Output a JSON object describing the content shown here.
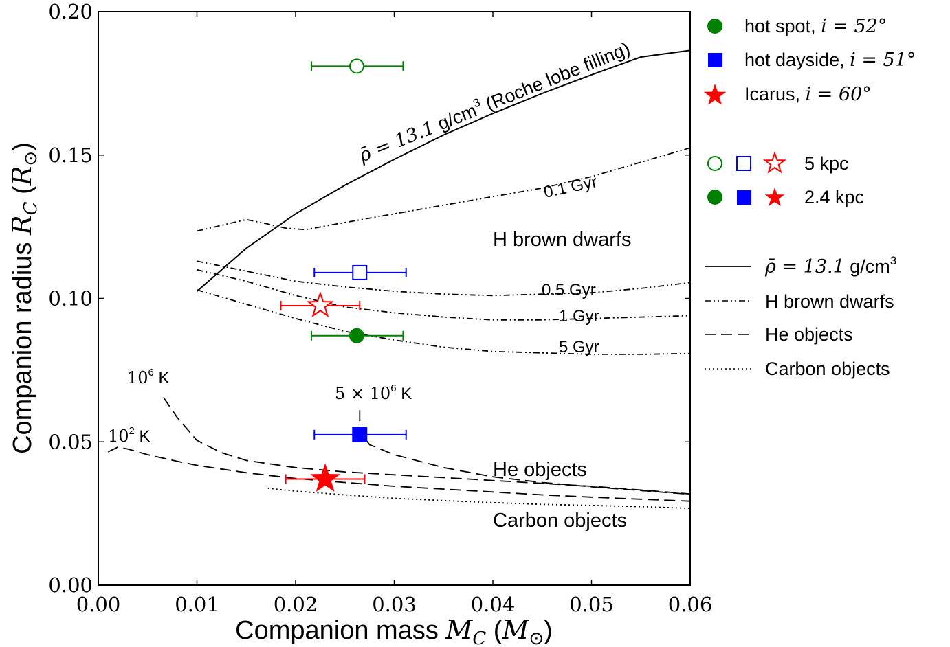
{
  "chart_data": {
    "type": "scatter",
    "title": "",
    "xlabel": {
      "text": "Companion mass ",
      "math": "M",
      "sub": "C",
      "unit_open": " (",
      "unit_math": "M",
      "unit_sub": "⊙",
      "unit_close": ")"
    },
    "ylabel": {
      "text": "Companion radius ",
      "math": "R",
      "sub": "C",
      "unit_open": " (",
      "unit_math": "R",
      "unit_sub": "⊙",
      "unit_close": ")"
    },
    "xlim": [
      0.0,
      0.06
    ],
    "ylim": [
      0.0,
      0.2
    ],
    "xticks": [
      0.0,
      0.01,
      0.02,
      0.03,
      0.04,
      0.05,
      0.06
    ],
    "xtick_labels": [
      "0.00",
      "0.01",
      "0.02",
      "0.03",
      "0.04",
      "0.05",
      "0.06"
    ],
    "yticks": [
      0.0,
      0.05,
      0.1,
      0.15,
      0.2
    ],
    "ytick_labels": [
      "0.00",
      "0.05",
      "0.10",
      "0.15",
      "0.20"
    ],
    "grid": false,
    "legend_placement": "right-outside",
    "colors": {
      "green": "#008000",
      "blue": "#0000ff",
      "red": "#ff0000",
      "black": "#000000"
    },
    "points": [
      {
        "model": "hot spot",
        "distance": "5 kpc",
        "marker": "circle",
        "filled": false,
        "color": "#008000",
        "x": 0.0262,
        "y": 0.181,
        "xerr": [
          0.0216,
          0.0309
        ]
      },
      {
        "model": "hot spot",
        "distance": "2.4 kpc",
        "marker": "circle",
        "filled": true,
        "color": "#008000",
        "x": 0.0262,
        "y": 0.087,
        "xerr": [
          0.0216,
          0.0309
        ]
      },
      {
        "model": "hot dayside",
        "distance": "5 kpc",
        "marker": "square",
        "filled": false,
        "color": "#0000ff",
        "x": 0.0265,
        "y": 0.109,
        "xerr": [
          0.0219,
          0.0312
        ]
      },
      {
        "model": "hot dayside",
        "distance": "2.4 kpc",
        "marker": "square",
        "filled": true,
        "color": "#0000ff",
        "x": 0.0265,
        "y": 0.0525,
        "xerr": [
          0.0219,
          0.0312
        ]
      },
      {
        "model": "Icarus",
        "distance": "5 kpc",
        "marker": "star",
        "filled": false,
        "color": "#ff0000",
        "x": 0.0225,
        "y": 0.0975,
        "xerr": [
          0.0185,
          0.0265
        ]
      },
      {
        "model": "Icarus",
        "distance": "2.4 kpc",
        "marker": "star",
        "filled": true,
        "color": "#ff0000",
        "x": 0.023,
        "y": 0.037,
        "xerr": [
          0.019,
          0.027
        ]
      }
    ],
    "curves": [
      {
        "id": "roche",
        "style": "solid",
        "points": [
          [
            0.01,
            0.1025
          ],
          [
            0.015,
            0.1175
          ],
          [
            0.02,
            0.1295
          ],
          [
            0.025,
            0.1395
          ],
          [
            0.03,
            0.1485
          ],
          [
            0.035,
            0.157
          ],
          [
            0.04,
            0.1645
          ],
          [
            0.045,
            0.1715
          ],
          [
            0.05,
            0.178
          ],
          [
            0.055,
            0.1842
          ],
          [
            0.06,
            0.1865
          ]
        ]
      },
      {
        "id": "bd-0.1",
        "style": "dashdot",
        "points": [
          [
            0.01,
            0.1235
          ],
          [
            0.0125,
            0.1255
          ],
          [
            0.015,
            0.1275
          ],
          [
            0.0165,
            0.1265
          ],
          [
            0.019,
            0.1245
          ],
          [
            0.021,
            0.124
          ],
          [
            0.025,
            0.1265
          ],
          [
            0.03,
            0.1295
          ],
          [
            0.035,
            0.1325
          ],
          [
            0.04,
            0.1355
          ],
          [
            0.045,
            0.1385
          ],
          [
            0.05,
            0.1425
          ],
          [
            0.055,
            0.1475
          ],
          [
            0.06,
            0.1525
          ]
        ]
      },
      {
        "id": "bd-0.5",
        "style": "dashdot",
        "points": [
          [
            0.01,
            0.113
          ],
          [
            0.015,
            0.1095
          ],
          [
            0.02,
            0.106
          ],
          [
            0.025,
            0.104
          ],
          [
            0.03,
            0.1025
          ],
          [
            0.035,
            0.1015
          ],
          [
            0.04,
            0.101
          ],
          [
            0.045,
            0.1015
          ],
          [
            0.05,
            0.102
          ],
          [
            0.055,
            0.1035
          ],
          [
            0.06,
            0.1055
          ]
        ]
      },
      {
        "id": "bd-1",
        "style": "dashdot",
        "points": [
          [
            0.01,
            0.11
          ],
          [
            0.015,
            0.106
          ],
          [
            0.02,
            0.101
          ],
          [
            0.025,
            0.097
          ],
          [
            0.03,
            0.095
          ],
          [
            0.035,
            0.0935
          ],
          [
            0.04,
            0.0925
          ],
          [
            0.045,
            0.0925
          ],
          [
            0.05,
            0.093
          ],
          [
            0.055,
            0.0935
          ],
          [
            0.06,
            0.094
          ]
        ]
      },
      {
        "id": "bd-5",
        "style": "dashdot",
        "points": [
          [
            0.01,
            0.103
          ],
          [
            0.015,
            0.098
          ],
          [
            0.02,
            0.093
          ],
          [
            0.025,
            0.0885
          ],
          [
            0.03,
            0.0855
          ],
          [
            0.035,
            0.083
          ],
          [
            0.04,
            0.0815
          ],
          [
            0.045,
            0.081
          ],
          [
            0.05,
            0.0805
          ],
          [
            0.055,
            0.0805
          ],
          [
            0.06,
            0.0808
          ]
        ]
      },
      {
        "id": "he-1e6",
        "style": "dashed",
        "points": [
          [
            0.0066,
            0.0655
          ],
          [
            0.008,
            0.0585
          ],
          [
            0.01,
            0.0505
          ],
          [
            0.0125,
            0.0462
          ],
          [
            0.015,
            0.0435
          ],
          [
            0.02,
            0.041
          ],
          [
            0.025,
            0.0395
          ],
          [
            0.03,
            0.0385
          ],
          [
            0.035,
            0.0375
          ],
          [
            0.04,
            0.0365
          ],
          [
            0.045,
            0.0355
          ],
          [
            0.05,
            0.0345
          ],
          [
            0.055,
            0.0332
          ],
          [
            0.06,
            0.0318
          ]
        ]
      },
      {
        "id": "he-5e6",
        "style": "dashed",
        "points": [
          [
            0.0265,
            0.061
          ],
          [
            0.0265,
            0.058
          ],
          [
            0.0265,
            0.0535
          ],
          [
            0.0275,
            0.049
          ],
          [
            0.03,
            0.0455
          ],
          [
            0.035,
            0.041
          ],
          [
            0.04,
            0.0378
          ],
          [
            0.045,
            0.0358
          ],
          [
            0.05,
            0.0343
          ],
          [
            0.055,
            0.033
          ],
          [
            0.06,
            0.0317
          ]
        ]
      },
      {
        "id": "he-1e2",
        "style": "dashed",
        "points": [
          [
            0.001,
            0.0465
          ],
          [
            0.002,
            0.0482
          ],
          [
            0.003,
            0.0475
          ],
          [
            0.005,
            0.0455
          ],
          [
            0.008,
            0.0432
          ],
          [
            0.01,
            0.0418
          ],
          [
            0.015,
            0.0392
          ],
          [
            0.02,
            0.0372
          ],
          [
            0.025,
            0.0358
          ],
          [
            0.03,
            0.0345
          ],
          [
            0.035,
            0.0335
          ],
          [
            0.04,
            0.0325
          ],
          [
            0.045,
            0.0315
          ],
          [
            0.05,
            0.0307
          ],
          [
            0.055,
            0.03
          ],
          [
            0.06,
            0.0293
          ]
        ]
      },
      {
        "id": "carbon",
        "style": "dotted",
        "points": [
          [
            0.0172,
            0.0338
          ],
          [
            0.02,
            0.0328
          ],
          [
            0.025,
            0.0315
          ],
          [
            0.03,
            0.0303
          ],
          [
            0.035,
            0.0295
          ],
          [
            0.04,
            0.0288
          ],
          [
            0.045,
            0.0282
          ],
          [
            0.05,
            0.0278
          ],
          [
            0.055,
            0.0274
          ],
          [
            0.06,
            0.0268
          ]
        ]
      }
    ],
    "annotations": {
      "roche_rho": "ρ̄ = 13.1",
      "roche_units": " g/cm",
      "roche_sup": "3",
      "roche_tail": " (Roche lobe filling)",
      "gyr_01": "0.1 Gyr",
      "gyr_05": "0.5 Gyr",
      "gyr_1": "1 Gyr",
      "gyr_5": "5 Gyr",
      "h_brown_dwarfs": "H brown dwarfs",
      "he_objects": "He objects",
      "carbon_objects": "Carbon objects",
      "t_1e6_base": "10",
      "t_1e6_exp": "6",
      "t_1e6_unit": " K",
      "t_1e2_base": "10",
      "t_1e2_exp": "2",
      "t_1e2_unit": " K",
      "t_5e6_base": "5 × 10",
      "t_5e6_exp": "6",
      "t_5e6_unit": " K"
    },
    "legend": {
      "models": [
        {
          "label": "hot spot, ",
          "incl": "i = 52°",
          "marker": "circle",
          "color": "#008000"
        },
        {
          "label": "hot dayside, ",
          "incl": "i = 51°",
          "marker": "square",
          "color": "#0000ff"
        },
        {
          "label": "Icarus, ",
          "incl": "i = 60°",
          "marker": "star",
          "color": "#ff0000"
        }
      ],
      "distances": [
        {
          "label": "5 kpc",
          "filled": false
        },
        {
          "label": "2.4 kpc",
          "filled": true
        }
      ],
      "lines": [
        {
          "label_math": "ρ̄ = 13.1",
          "label": " g/cm",
          "sup": "3",
          "style": "solid"
        },
        {
          "label": "H brown dwarfs",
          "style": "dashdot"
        },
        {
          "label": "He objects",
          "style": "dashed"
        },
        {
          "label": "Carbon objects",
          "style": "dotted"
        }
      ]
    }
  }
}
